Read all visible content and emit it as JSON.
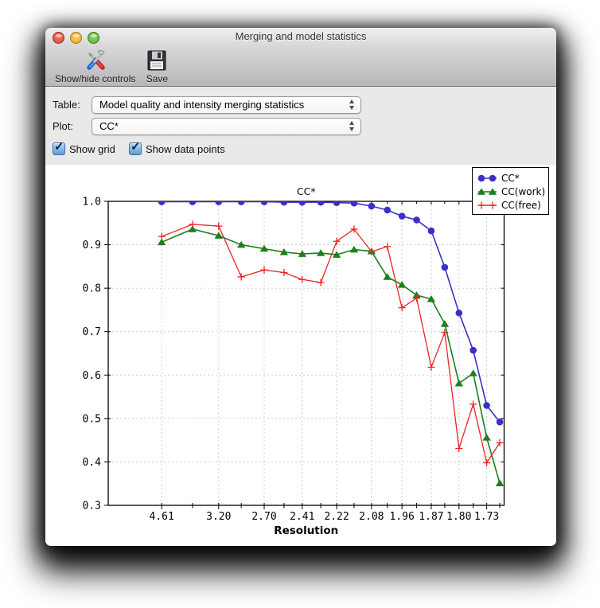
{
  "window": {
    "title": "Merging and model statistics"
  },
  "toolbar": {
    "buttons": [
      {
        "label": "Show/hide controls",
        "icon": "tools-icon"
      },
      {
        "label": "Save",
        "icon": "save-icon"
      }
    ]
  },
  "controls": {
    "table_label": "Table:",
    "table_value": "Model quality and intensity merging statistics",
    "plot_label": "Plot:",
    "plot_value": "CC*",
    "checkboxes": [
      {
        "label": "Show grid",
        "checked": true
      },
      {
        "label": "Show data points",
        "checked": true
      }
    ]
  },
  "chart_data": {
    "type": "line",
    "title": "CC*",
    "xlabel": "Resolution",
    "ylabel": "",
    "ylim": [
      0.3,
      1.0
    ],
    "grid": true,
    "legend_position": "upper right",
    "y_tick_labels": [
      "1.0",
      "0.9",
      "0.8",
      "0.7",
      "0.6",
      "0.5",
      "0.4",
      "0.3"
    ],
    "y_tick_values": [
      1.0,
      0.9,
      0.8,
      0.7,
      0.6,
      0.5,
      0.4,
      0.3
    ],
    "x_tick_labels": [
      "4.61",
      "3.20",
      "2.70",
      "2.41",
      "2.22",
      "2.08",
      "1.96",
      "1.87",
      "1.80",
      "1.73"
    ],
    "x_tick_bins": [
      0,
      2,
      4,
      6,
      8,
      10,
      12,
      14,
      16,
      18
    ],
    "bin_positions": [
      0.135,
      0.213,
      0.279,
      0.336,
      0.394,
      0.444,
      0.49,
      0.537,
      0.577,
      0.621,
      0.665,
      0.705,
      0.742,
      0.779,
      0.816,
      0.85,
      0.886,
      0.922,
      0.956,
      0.989
    ],
    "series": [
      {
        "name": "CC*",
        "color": "#3b2fc9",
        "marker": "circle",
        "values": [
          0.999,
          0.999,
          0.999,
          0.999,
          0.999,
          0.998,
          0.998,
          0.998,
          0.997,
          0.996,
          0.989,
          0.98,
          0.966,
          0.957,
          0.932,
          0.848,
          0.743,
          0.657,
          0.53,
          0.492
        ]
      },
      {
        "name": "CC(work)",
        "color": "#1e7e1e",
        "marker": "triangle",
        "values": [
          0.906,
          0.936,
          0.921,
          0.9,
          0.891,
          0.883,
          0.879,
          0.881,
          0.877,
          0.889,
          0.885,
          0.826,
          0.808,
          0.784,
          0.775,
          0.718,
          0.581,
          0.604,
          0.456,
          0.351
        ]
      },
      {
        "name": "CC(free)",
        "color": "#ef2222",
        "marker": "plus",
        "values": [
          0.919,
          0.947,
          0.943,
          0.826,
          0.842,
          0.836,
          0.82,
          0.813,
          0.908,
          0.936,
          0.884,
          0.896,
          0.755,
          0.777,
          0.618,
          0.698,
          0.431,
          0.533,
          0.398,
          0.444
        ]
      }
    ]
  }
}
